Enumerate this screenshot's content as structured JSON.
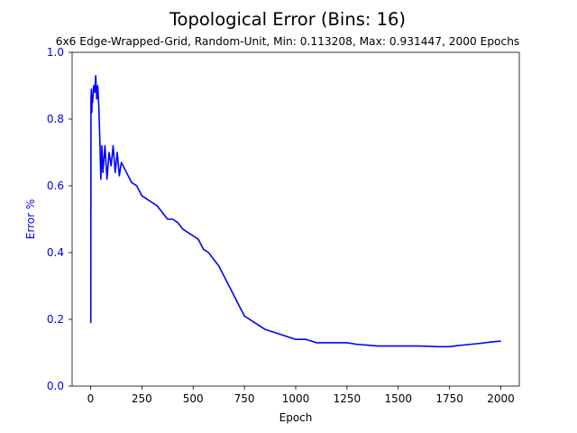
{
  "chart_data": {
    "type": "line",
    "title": "Topological Error (Bins: 16)",
    "subtitle": "6x6 Edge-Wrapped-Grid, Random-Unit, Min: 0.113208, Max: 0.931447, 2000 Epochs",
    "xlabel": "Epoch",
    "ylabel": "Error %",
    "xlim": [
      -90,
      2090
    ],
    "ylim": [
      0.0,
      1.0
    ],
    "xticks": [
      "0",
      "250",
      "500",
      "750",
      "1000",
      "1250",
      "1500",
      "1750",
      "2000"
    ],
    "yticks": [
      "0.0",
      "0.2",
      "0.4",
      "0.6",
      "0.8",
      "1.0"
    ],
    "grid": false,
    "colors": {
      "line": "#0000ff",
      "ylabel": "#0000ff",
      "yticks": "#0000ff",
      "axes": "#000000"
    },
    "series": [
      {
        "x": [
          0,
          1,
          2,
          4,
          6,
          8,
          10,
          15,
          20,
          25,
          30,
          35,
          40,
          45,
          50,
          55,
          60,
          70,
          80,
          90,
          100,
          110,
          120,
          130,
          140,
          150,
          175,
          200,
          225,
          250,
          275,
          300,
          325,
          350,
          375,
          400,
          425,
          450,
          475,
          500,
          525,
          550,
          575,
          600,
          625,
          650,
          675,
          700,
          725,
          750,
          775,
          800,
          850,
          900,
          950,
          1000,
          1050,
          1100,
          1150,
          1200,
          1250,
          1300,
          1400,
          1500,
          1600,
          1700,
          1750,
          1800,
          1850,
          1900,
          1950,
          2000
        ],
        "y": [
          0.19,
          0.19,
          0.86,
          0.89,
          0.82,
          0.87,
          0.85,
          0.9,
          0.88,
          0.93,
          0.86,
          0.9,
          0.84,
          0.74,
          0.62,
          0.72,
          0.64,
          0.72,
          0.62,
          0.7,
          0.66,
          0.72,
          0.64,
          0.7,
          0.63,
          0.67,
          0.64,
          0.61,
          0.6,
          0.57,
          0.56,
          0.55,
          0.54,
          0.52,
          0.5,
          0.5,
          0.49,
          0.47,
          0.46,
          0.45,
          0.44,
          0.41,
          0.4,
          0.38,
          0.36,
          0.33,
          0.3,
          0.27,
          0.24,
          0.21,
          0.2,
          0.19,
          0.17,
          0.16,
          0.15,
          0.14,
          0.14,
          0.13,
          0.13,
          0.13,
          0.13,
          0.125,
          0.12,
          0.12,
          0.12,
          0.118,
          0.118,
          0.122,
          0.125,
          0.128,
          0.132,
          0.135
        ]
      }
    ]
  }
}
